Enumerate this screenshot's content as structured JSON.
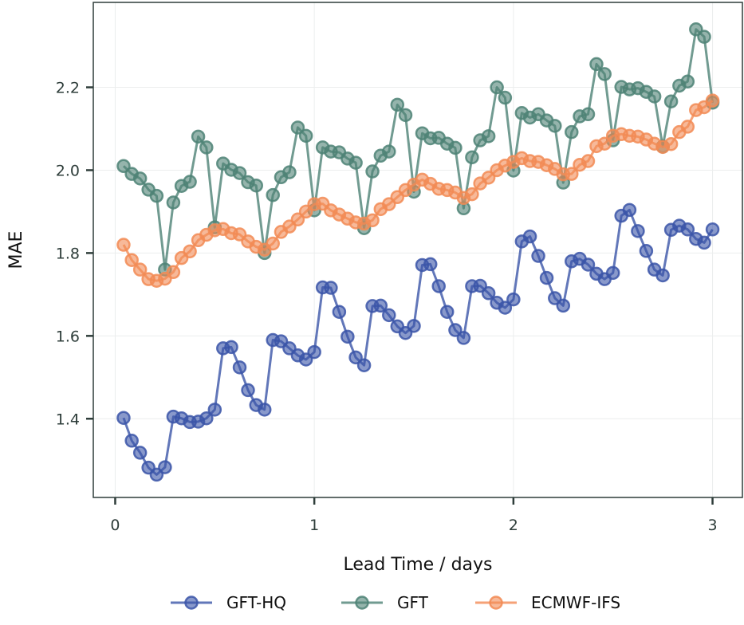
{
  "chart_data": {
    "type": "line",
    "title": "",
    "xlabel": "Lead Time / days",
    "ylabel": "MAE",
    "xlim": [
      -0.11,
      3.15
    ],
    "ylim": [
      1.21,
      2.405
    ],
    "grid": true,
    "legend_position": "bottom-center",
    "x_ticks": [
      0,
      1,
      2,
      3
    ],
    "x_tick_labels": [
      "0",
      "1",
      "2",
      "3"
    ],
    "y_ticks": [
      1.4,
      1.6,
      1.8,
      2.0,
      2.2
    ],
    "y_tick_labels": [
      "1.4",
      "1.6",
      "1.8",
      "2.0",
      "2.2"
    ],
    "x": [
      0.042,
      0.083,
      0.125,
      0.167,
      0.208,
      0.25,
      0.292,
      0.333,
      0.375,
      0.417,
      0.458,
      0.5,
      0.542,
      0.583,
      0.625,
      0.667,
      0.708,
      0.75,
      0.792,
      0.833,
      0.875,
      0.917,
      0.958,
      1.0,
      1.042,
      1.083,
      1.125,
      1.167,
      1.208,
      1.25,
      1.292,
      1.333,
      1.375,
      1.417,
      1.458,
      1.5,
      1.542,
      1.583,
      1.625,
      1.667,
      1.708,
      1.75,
      1.792,
      1.833,
      1.875,
      1.917,
      1.958,
      2.0,
      2.042,
      2.083,
      2.125,
      2.167,
      2.208,
      2.25,
      2.292,
      2.333,
      2.375,
      2.417,
      2.458,
      2.5,
      2.542,
      2.583,
      2.625,
      2.667,
      2.708,
      2.75,
      2.792,
      2.833,
      2.875,
      2.917,
      2.958,
      3.0
    ],
    "series": [
      {
        "name": "GFT-HQ",
        "color": "#3b55a8",
        "values": [
          1.402,
          1.347,
          1.318,
          1.282,
          1.265,
          1.283,
          1.405,
          1.401,
          1.392,
          1.393,
          1.401,
          1.422,
          1.57,
          1.573,
          1.524,
          1.469,
          1.433,
          1.422,
          1.59,
          1.587,
          1.57,
          1.553,
          1.543,
          1.561,
          1.717,
          1.716,
          1.658,
          1.598,
          1.548,
          1.529,
          1.672,
          1.673,
          1.65,
          1.623,
          1.607,
          1.624,
          1.771,
          1.773,
          1.72,
          1.658,
          1.614,
          1.595,
          1.72,
          1.721,
          1.703,
          1.68,
          1.668,
          1.688,
          1.828,
          1.84,
          1.793,
          1.74,
          1.691,
          1.673,
          1.78,
          1.786,
          1.772,
          1.75,
          1.737,
          1.752,
          1.89,
          1.904,
          1.853,
          1.805,
          1.76,
          1.746,
          1.856,
          1.866,
          1.857,
          1.834,
          1.825,
          1.857
        ]
      },
      {
        "name": "GFT",
        "color": "#4e8275",
        "values": [
          2.01,
          1.991,
          1.98,
          1.953,
          1.938,
          1.76,
          1.922,
          1.962,
          1.972,
          2.081,
          2.055,
          1.862,
          2.016,
          2.001,
          1.993,
          1.971,
          1.963,
          1.8,
          1.94,
          1.983,
          1.995,
          2.103,
          2.083,
          1.903,
          2.055,
          2.045,
          2.043,
          2.028,
          2.018,
          1.86,
          1.997,
          2.035,
          2.045,
          2.158,
          2.133,
          1.948,
          2.089,
          2.077,
          2.078,
          2.064,
          2.054,
          1.908,
          2.031,
          2.072,
          2.082,
          2.2,
          2.175,
          1.999,
          2.138,
          2.127,
          2.135,
          2.12,
          2.107,
          1.97,
          2.092,
          2.13,
          2.135,
          2.256,
          2.232,
          2.072,
          2.201,
          2.195,
          2.198,
          2.189,
          2.178,
          2.057,
          2.166,
          2.204,
          2.214,
          2.34,
          2.322,
          2.163
        ]
      },
      {
        "name": "ECMWF-IFS",
        "color": "#f28b55",
        "values": [
          1.82,
          1.783,
          1.76,
          1.737,
          1.733,
          1.738,
          1.754,
          1.788,
          1.804,
          1.831,
          1.844,
          1.855,
          1.858,
          1.848,
          1.845,
          1.828,
          1.815,
          1.808,
          1.823,
          1.851,
          1.864,
          1.881,
          1.9,
          1.918,
          1.919,
          1.903,
          1.893,
          1.883,
          1.874,
          1.871,
          1.879,
          1.906,
          1.918,
          1.935,
          1.952,
          1.965,
          1.977,
          1.967,
          1.955,
          1.952,
          1.946,
          1.933,
          1.942,
          1.968,
          1.982,
          2.0,
          2.011,
          2.02,
          2.029,
          2.022,
          2.02,
          2.012,
          2.003,
          1.99,
          1.991,
          2.013,
          2.022,
          2.058,
          2.064,
          2.083,
          2.087,
          2.083,
          2.081,
          2.074,
          2.064,
          2.056,
          2.063,
          2.092,
          2.105,
          2.145,
          2.152,
          2.168
        ]
      }
    ]
  }
}
